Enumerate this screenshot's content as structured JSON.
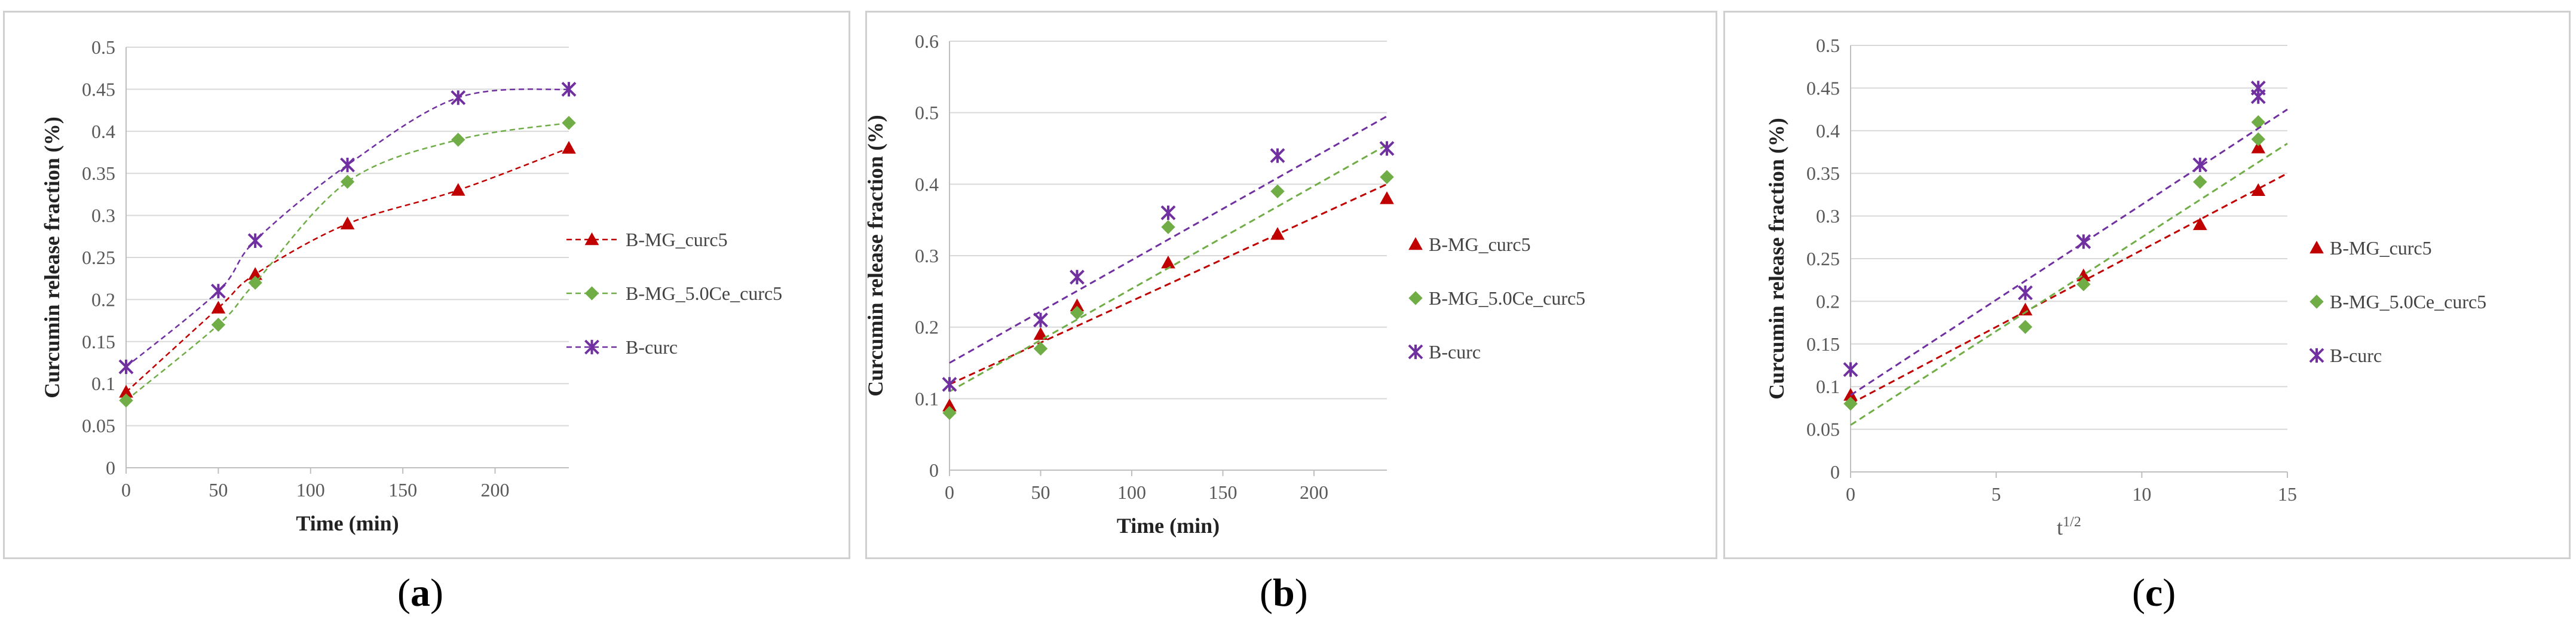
{
  "labels": {
    "a": "a",
    "b": "b",
    "c": "c"
  },
  "colors": {
    "B-MG_curc5": "#c00000",
    "B-MG_5.0Ce_curc5": "#70ad47",
    "B-curc": "#7030a0"
  },
  "chart_data": [
    {
      "id": "a",
      "type": "line",
      "style": "smoothed dashed line with markers",
      "title": "",
      "xlabel": "Time (min)",
      "ylabel": "Curcumin release fraction (%)",
      "xlim": [
        0,
        240
      ],
      "ylim": [
        0,
        0.5
      ],
      "xticks": [
        "0",
        "50",
        "100",
        "150",
        "200"
      ],
      "yticks": [
        "0",
        "0.05",
        "0.1",
        "0.15",
        "0.2",
        "0.25",
        "0.3",
        "0.35",
        "0.4",
        "0.45",
        "0.5"
      ],
      "xtick_values": [
        0,
        50,
        100,
        150,
        200
      ],
      "ytick_values": [
        0,
        0.05,
        0.1,
        0.15,
        0.2,
        0.25,
        0.3,
        0.35,
        0.4,
        0.45,
        0.5
      ],
      "grid": "horizontal",
      "legend_position": "right",
      "x": [
        0,
        50,
        70,
        120,
        180,
        240
      ],
      "series": [
        {
          "name": "B-MG_curc5",
          "marker": "triangle",
          "values": [
            0.09,
            0.19,
            0.23,
            0.29,
            0.33,
            0.38
          ]
        },
        {
          "name": "B-MG_5.0Ce_curc5",
          "marker": "diamond",
          "values": [
            0.08,
            0.17,
            0.22,
            0.34,
            0.39,
            0.41
          ]
        },
        {
          "name": "B-curc",
          "marker": "star",
          "values": [
            0.12,
            0.21,
            0.27,
            0.36,
            0.44,
            0.45
          ]
        }
      ]
    },
    {
      "id": "b",
      "type": "scatter",
      "style": "markers with dashed linear trendlines",
      "title": "",
      "xlabel": "Time (min)",
      "ylabel": "Curcumin release fraction (%)",
      "xlim": [
        0,
        240
      ],
      "ylim": [
        0,
        0.6
      ],
      "xticks": [
        "0",
        "50",
        "100",
        "150",
        "200"
      ],
      "yticks": [
        "0",
        "0.1",
        "0.2",
        "0.3",
        "0.4",
        "0.5",
        "0.6"
      ],
      "xtick_values": [
        0,
        50,
        100,
        150,
        200
      ],
      "ytick_values": [
        0,
        0.1,
        0.2,
        0.3,
        0.4,
        0.5,
        0.6
      ],
      "grid": "horizontal",
      "legend_position": "right",
      "x": [
        0,
        50,
        70,
        120,
        180,
        240
      ],
      "series": [
        {
          "name": "B-MG_curc5",
          "marker": "triangle",
          "values": [
            0.09,
            0.19,
            0.23,
            0.29,
            0.33,
            0.38
          ],
          "trend": [
            0.12,
            0.4
          ]
        },
        {
          "name": "B-MG_5.0Ce_curc5",
          "marker": "diamond",
          "values": [
            0.08,
            0.17,
            0.22,
            0.34,
            0.39,
            0.41
          ],
          "trend": [
            0.11,
            0.455
          ]
        },
        {
          "name": "B-curc",
          "marker": "star",
          "values": [
            0.12,
            0.21,
            0.27,
            0.36,
            0.44,
            0.45
          ],
          "trend": [
            0.15,
            0.495
          ]
        }
      ]
    },
    {
      "id": "c",
      "type": "scatter",
      "style": "markers with dashed linear trendlines",
      "title": "",
      "xlabel": "t",
      "xlabel_sup": "1/2",
      "ylabel": "Curcumin release fraction (%)",
      "xlim": [
        0,
        15
      ],
      "ylim": [
        0,
        0.5
      ],
      "xticks": [
        "0",
        "5",
        "10",
        "15"
      ],
      "yticks": [
        "0",
        "0.05",
        "0.1",
        "0.15",
        "0.2",
        "0.25",
        "0.3",
        "0.35",
        "0.4",
        "0.45",
        "0.5"
      ],
      "xtick_values": [
        0,
        5,
        10,
        15
      ],
      "ytick_values": [
        0,
        0.05,
        0.1,
        0.15,
        0.2,
        0.25,
        0.3,
        0.35,
        0.4,
        0.45,
        0.5
      ],
      "grid": "horizontal",
      "legend_position": "right",
      "x": [
        0,
        6,
        8,
        12,
        14,
        14
      ],
      "series": [
        {
          "name": "B-MG_curc5",
          "marker": "triangle",
          "values": [
            0.09,
            0.19,
            0.23,
            0.29,
            0.33,
            0.38
          ],
          "trend": [
            0.08,
            0.35
          ]
        },
        {
          "name": "B-MG_5.0Ce_curc5",
          "marker": "diamond",
          "values": [
            0.08,
            0.17,
            0.22,
            0.34,
            0.39,
            0.41
          ],
          "trend": [
            0.055,
            0.385
          ]
        },
        {
          "name": "B-curc",
          "marker": "star",
          "values": [
            0.12,
            0.21,
            0.27,
            0.36,
            0.44,
            0.45
          ],
          "trend": [
            0.09,
            0.425
          ]
        }
      ]
    }
  ]
}
